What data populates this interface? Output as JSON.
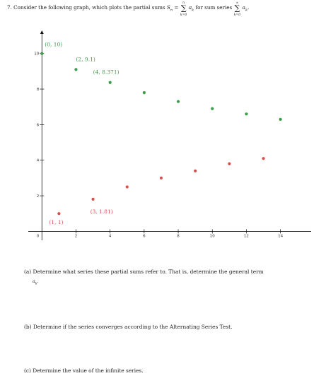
{
  "question": {
    "number": "7.",
    "intro": "Consider the following graph, which plots the partial sums",
    "sn": "S",
    "sn_sub": "n",
    "equals": "=",
    "sum1_upper": "n",
    "sum1_lower": "k=0",
    "term1": "a",
    "term1_sub": "k",
    "mid_text": "for sum series",
    "sum2_upper": "∞",
    "sum2_lower": "k=0",
    "term2": "a",
    "term2_sub": "k",
    "end": "."
  },
  "chart_data": {
    "type": "scatter",
    "xlim": [
      -0.8,
      15.8
    ],
    "ylim": [
      -0.5,
      11.3
    ],
    "x_ticks": [
      2,
      4,
      6,
      8,
      10,
      12,
      14
    ],
    "y_ticks": [
      2,
      4,
      6,
      8,
      10
    ],
    "origin_label": "0",
    "series": [
      {
        "color": "#3a9a4a",
        "points": [
          {
            "x": 0,
            "y": 10
          },
          {
            "x": 2,
            "y": 9.1
          },
          {
            "x": 4,
            "y": 8.371
          },
          {
            "x": 6,
            "y": 7.8
          },
          {
            "x": 8,
            "y": 7.3
          },
          {
            "x": 10,
            "y": 6.9
          },
          {
            "x": 12,
            "y": 6.6
          },
          {
            "x": 14,
            "y": 6.3
          }
        ]
      },
      {
        "color": "#d45050",
        "points": [
          {
            "x": 1,
            "y": 1
          },
          {
            "x": 3,
            "y": 1.81
          },
          {
            "x": 5,
            "y": 2.5
          },
          {
            "x": 7,
            "y": 3.0
          },
          {
            "x": 9,
            "y": 3.4
          },
          {
            "x": 11,
            "y": 3.8
          },
          {
            "x": 13,
            "y": 4.1
          }
        ]
      }
    ],
    "annotations": [
      {
        "text": "(0, 10)",
        "x": 0,
        "y": 10,
        "color": "#3a9a4a"
      },
      {
        "text": "(2, 9.1)",
        "x": 2,
        "y": 9.1,
        "color": "#3a9a4a"
      },
      {
        "text": "(4, 8.371)",
        "x": 4,
        "y": 8.371,
        "color": "#3a9a4a"
      },
      {
        "text": "(3, 1.81)",
        "x": 3,
        "y": 1.81,
        "color": "#d45050"
      },
      {
        "text": "(1, 1)",
        "x": 1,
        "y": 1,
        "color": "#d45050"
      }
    ]
  },
  "parts": {
    "a_label": "(a)",
    "a_text": "Determine what series these partial sums refer to. That is, determine the general term",
    "a_term": "a",
    "a_term_sub": "k",
    "a_end": ".",
    "b_label": "(b)",
    "b_text": "Determine if the series converges according to the Alternating Series Test.",
    "c_label": "(c)",
    "c_text": "Determine the value of the infinite series."
  }
}
